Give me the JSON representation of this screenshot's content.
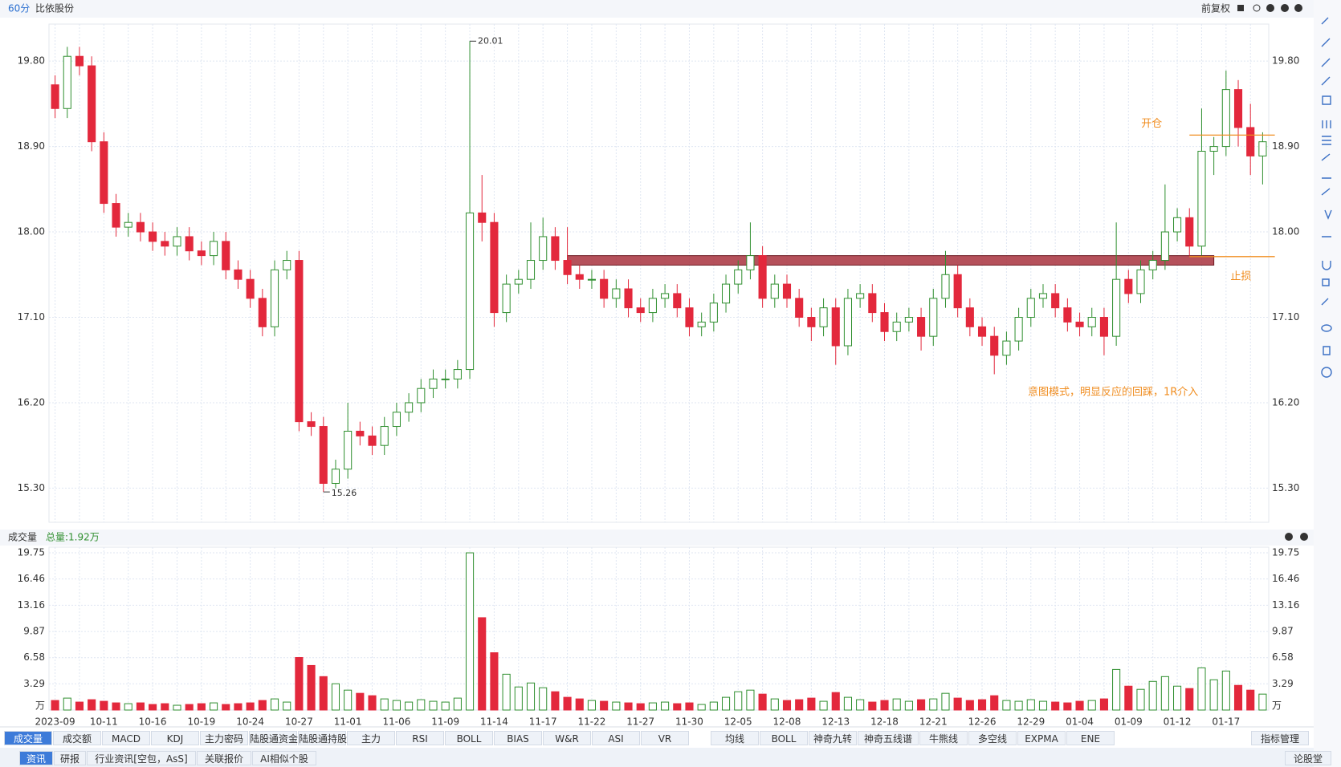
{
  "top_bar": {
    "period": "60分",
    "stock": "比依股份",
    "adjust": "前复权"
  },
  "chart_data": [
    {
      "type": "candlestick",
      "categories": [
        "2023-09",
        null,
        null,
        null,
        "10-11",
        null,
        null,
        null,
        "10-16",
        null,
        null,
        null,
        "10-19",
        null,
        null,
        null,
        "10-24",
        null,
        null,
        null,
        "10-27",
        null,
        null,
        null,
        "11-01",
        null,
        null,
        null,
        "11-06",
        null,
        null,
        null,
        "11-09",
        null,
        null,
        null,
        "11-14",
        null,
        null,
        null,
        "11-17",
        null,
        null,
        null,
        "11-22",
        null,
        null,
        null,
        "11-27",
        null,
        null,
        null,
        "11-30",
        null,
        null,
        null,
        "12-05",
        null,
        null,
        null,
        "12-08",
        null,
        null,
        null,
        "12-13",
        null,
        null,
        null,
        "12-18",
        null,
        null,
        null,
        "12-21",
        null,
        null,
        null,
        "12-26",
        null,
        null,
        null,
        "12-29",
        null,
        null,
        null,
        "01-04",
        null,
        null,
        null,
        "01-09",
        null,
        null,
        null,
        "01-12",
        null,
        null,
        null,
        "01-17",
        null,
        null,
        null
      ],
      "open": [
        19.55,
        19.3,
        19.85,
        19.75,
        18.95,
        18.3,
        18.05,
        18.1,
        18.0,
        17.9,
        17.85,
        17.95,
        17.8,
        17.75,
        17.9,
        17.6,
        17.5,
        17.3,
        17.0,
        17.6,
        17.7,
        16.0,
        15.95,
        15.35,
        15.5,
        15.9,
        15.85,
        15.75,
        15.95,
        16.1,
        16.2,
        16.35,
        16.45,
        16.45,
        16.55,
        18.2,
        18.1,
        17.15,
        17.45,
        17.5,
        17.7,
        17.95,
        17.7,
        17.55,
        17.5,
        17.5,
        17.3,
        17.4,
        17.2,
        17.15,
        17.3,
        17.35,
        17.2,
        17.0,
        17.05,
        17.25,
        17.45,
        17.6,
        17.75,
        17.3,
        17.45,
        17.3,
        17.1,
        17.0,
        17.2,
        16.8,
        17.3,
        17.35,
        17.15,
        16.95,
        17.05,
        17.1,
        16.9,
        17.3,
        17.55,
        17.2,
        17.0,
        16.9,
        16.7,
        16.85,
        17.1,
        17.3,
        17.35,
        17.2,
        17.05,
        17.0,
        17.1,
        16.9,
        17.5,
        17.35,
        17.6,
        17.7,
        18.0,
        18.15,
        17.85,
        18.85,
        18.9,
        19.5,
        19.1,
        18.8
      ],
      "high": [
        19.65,
        19.95,
        19.95,
        19.85,
        19.05,
        18.4,
        18.2,
        18.2,
        18.1,
        18.0,
        18.05,
        18.05,
        17.9,
        18.0,
        18.0,
        17.7,
        17.6,
        17.4,
        17.7,
        17.8,
        17.8,
        16.1,
        16.05,
        15.6,
        16.2,
        16.0,
        15.95,
        16.05,
        16.2,
        16.3,
        16.45,
        16.55,
        16.55,
        16.65,
        20.01,
        18.6,
        18.2,
        17.55,
        17.6,
        18.1,
        18.15,
        18.05,
        18.05,
        17.65,
        17.6,
        17.6,
        17.5,
        17.5,
        17.3,
        17.4,
        17.45,
        17.45,
        17.3,
        17.15,
        17.35,
        17.55,
        17.7,
        18.1,
        17.85,
        17.55,
        17.55,
        17.4,
        17.2,
        17.3,
        17.3,
        17.4,
        17.45,
        17.45,
        17.25,
        17.15,
        17.2,
        17.2,
        17.4,
        17.8,
        17.65,
        17.3,
        17.1,
        17.0,
        16.95,
        17.2,
        17.4,
        17.45,
        17.45,
        17.3,
        17.15,
        17.2,
        17.2,
        18.1,
        17.6,
        17.7,
        17.8,
        18.5,
        18.25,
        18.25,
        19.3,
        19.0,
        19.7,
        19.6,
        19.35,
        19.05
      ],
      "low": [
        19.2,
        19.2,
        19.65,
        18.85,
        18.2,
        17.95,
        17.95,
        17.9,
        17.8,
        17.75,
        17.75,
        17.7,
        17.65,
        17.65,
        17.5,
        17.4,
        17.2,
        16.9,
        16.9,
        17.5,
        15.9,
        15.85,
        15.26,
        15.3,
        15.4,
        15.75,
        15.65,
        15.65,
        15.85,
        16.0,
        16.1,
        16.25,
        16.35,
        16.35,
        16.45,
        17.9,
        17.0,
        17.05,
        17.35,
        17.4,
        17.6,
        17.6,
        17.45,
        17.4,
        17.4,
        17.2,
        17.2,
        17.1,
        17.05,
        17.05,
        17.2,
        17.1,
        16.9,
        16.9,
        16.95,
        17.15,
        17.35,
        17.5,
        17.2,
        17.2,
        17.2,
        17.0,
        16.85,
        16.9,
        16.6,
        16.7,
        17.2,
        17.05,
        16.85,
        16.85,
        16.95,
        16.75,
        16.8,
        17.2,
        17.1,
        16.9,
        16.8,
        16.5,
        16.6,
        16.75,
        17.0,
        17.2,
        17.1,
        16.95,
        16.9,
        16.9,
        16.7,
        16.8,
        17.25,
        17.25,
        17.5,
        17.6,
        17.9,
        17.75,
        17.75,
        18.6,
        18.8,
        18.9,
        18.6,
        18.5
      ],
      "close": [
        19.3,
        19.85,
        19.75,
        18.95,
        18.3,
        18.05,
        18.1,
        18.0,
        17.9,
        17.85,
        17.95,
        17.8,
        17.75,
        17.9,
        17.6,
        17.5,
        17.3,
        17.0,
        17.6,
        17.7,
        16.0,
        15.95,
        15.35,
        15.5,
        15.9,
        15.85,
        15.75,
        15.95,
        16.1,
        16.2,
        16.35,
        16.45,
        16.45,
        16.55,
        18.2,
        18.1,
        17.15,
        17.45,
        17.5,
        17.7,
        17.95,
        17.7,
        17.55,
        17.5,
        17.5,
        17.3,
        17.4,
        17.2,
        17.15,
        17.3,
        17.35,
        17.2,
        17.0,
        17.05,
        17.25,
        17.45,
        17.6,
        17.75,
        17.3,
        17.45,
        17.3,
        17.1,
        17.0,
        17.2,
        16.8,
        17.3,
        17.35,
        17.15,
        16.95,
        17.05,
        17.1,
        16.9,
        17.3,
        17.55,
        17.2,
        17.0,
        16.9,
        16.7,
        16.85,
        17.1,
        17.3,
        17.35,
        17.2,
        17.05,
        17.0,
        17.1,
        16.9,
        17.5,
        17.35,
        17.6,
        17.7,
        18.0,
        18.15,
        17.85,
        18.85,
        18.9,
        19.5,
        19.1,
        18.8,
        18.95
      ],
      "up_color": "#2f8f2f",
      "down_color": "#e3283c",
      "ylim": [
        14.94,
        20.19
      ],
      "yticks": [
        {
          "value": 15.3,
          "label": "15.30"
        },
        {
          "value": 16.2,
          "label": "16.20"
        },
        {
          "value": 17.1,
          "label": "17.10"
        },
        {
          "value": 18.0,
          "label": "18.00"
        },
        {
          "value": 18.9,
          "label": "18.90"
        },
        {
          "value": 19.8,
          "label": "19.80"
        }
      ],
      "grid": true,
      "zone": {
        "from": 42,
        "to": 95,
        "low": 17.65,
        "high": 17.75,
        "color": "#a8323e"
      },
      "entry": {
        "label": "开仓",
        "value": 19.02,
        "from": 93,
        "to": 99,
        "color": "#f08c1e"
      },
      "stop": {
        "label": "止损",
        "value": 17.74,
        "from": 93,
        "to": 99,
        "color": "#f08c1e"
      },
      "note": "意图模式，明显反应的回踩，1R介入"
    },
    {
      "type": "bar",
      "title": "成交量",
      "total": "总量:1.92万",
      "values": [
        1.2,
        1.5,
        1.0,
        1.3,
        1.1,
        0.9,
        0.8,
        0.9,
        0.7,
        0.8,
        0.6,
        0.7,
        0.8,
        0.9,
        0.7,
        0.8,
        0.9,
        1.2,
        1.4,
        1.0,
        6.6,
        5.6,
        4.2,
        3.3,
        2.5,
        2.1,
        1.8,
        1.4,
        1.2,
        1.0,
        1.3,
        1.1,
        1.0,
        1.5,
        19.75,
        11.6,
        7.2,
        4.5,
        2.9,
        3.4,
        2.8,
        2.3,
        1.6,
        1.4,
        1.2,
        1.1,
        1.0,
        0.9,
        0.8,
        0.9,
        1.0,
        0.8,
        0.9,
        0.7,
        1.0,
        1.6,
        2.3,
        2.5,
        2.0,
        1.4,
        1.2,
        1.3,
        1.5,
        1.1,
        2.2,
        1.6,
        1.3,
        1.0,
        1.2,
        1.4,
        1.1,
        1.3,
        1.4,
        2.1,
        1.5,
        1.2,
        1.3,
        1.8,
        1.2,
        1.1,
        1.3,
        1.1,
        1.0,
        0.9,
        1.1,
        1.2,
        1.4,
        5.1,
        3.0,
        2.6,
        3.6,
        4.2,
        3.0,
        2.7,
        5.3,
        3.8,
        4.9,
        3.1,
        2.5,
        2.0
      ],
      "ylim": [
        0,
        20.46
      ],
      "yticks": [
        {
          "value": 0,
          "label": "万"
        },
        3.29,
        6.58,
        9.87,
        13.16,
        16.46,
        19.75
      ]
    }
  ],
  "indicator_tabs": [
    "成交量",
    "成交额",
    "MACD",
    "KDJ",
    "主力密码",
    "陆股通资金",
    "陆股通持股",
    "主力",
    "RSI",
    "BOLL",
    "BIAS",
    "W&R",
    "ASI",
    "VR"
  ],
  "indicator_tabs_2": [
    "均线",
    "BOLL",
    "神奇九转",
    "神奇五线谱",
    "牛熊线",
    "多空线",
    "EXPMA",
    "ENE"
  ],
  "manage": "指标管理",
  "info_tabs": [
    "资讯",
    "研报",
    "行业资讯[空包，AsS]",
    "关联报价",
    "AI相似个股"
  ],
  "forum": "论股堂"
}
